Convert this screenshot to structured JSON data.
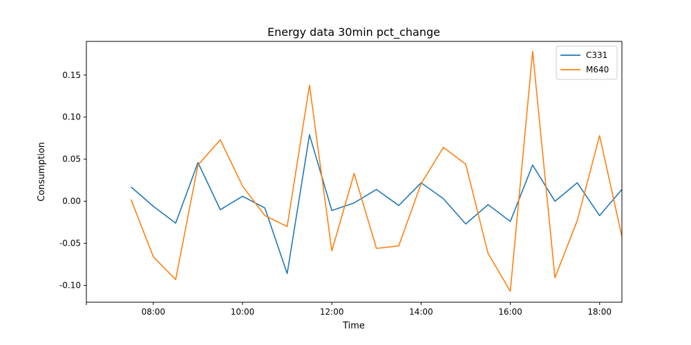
{
  "chart_data": {
    "type": "line",
    "title": "Energy data 30min pct_change",
    "xlabel": "Time",
    "ylabel": "Consumption",
    "x": [
      "07:30",
      "08:00",
      "08:30",
      "09:00",
      "09:30",
      "10:00",
      "10:30",
      "11:00",
      "11:30",
      "12:00",
      "12:30",
      "13:00",
      "13:30",
      "14:00",
      "14:30",
      "15:00",
      "15:30",
      "16:00",
      "16:30",
      "17:00",
      "17:30",
      "18:00",
      "18:30"
    ],
    "xlim": [
      "06:30",
      "18:30"
    ],
    "ylim": [
      -0.12,
      0.19
    ],
    "x_ticks": [
      "08:00",
      "10:00",
      "12:00",
      "14:00",
      "16:00",
      "18:00"
    ],
    "y_ticks": [
      "-0.10",
      "-0.05",
      "0.00",
      "0.05",
      "0.10",
      "0.15"
    ],
    "grid": false,
    "legend_position": "top-right",
    "series": [
      {
        "name": "C331",
        "color": "#1f77b4",
        "values": [
          0.017,
          -0.006,
          -0.026,
          0.046,
          -0.01,
          0.006,
          -0.008,
          -0.086,
          0.079,
          -0.011,
          -0.002,
          0.014,
          -0.005,
          0.022,
          0.003,
          -0.027,
          -0.004,
          -0.024,
          0.043,
          0.0,
          0.022,
          -0.017,
          0.014
        ]
      },
      {
        "name": "M640",
        "color": "#ff7f0e",
        "values": [
          0.002,
          -0.066,
          -0.093,
          0.043,
          0.073,
          0.018,
          -0.017,
          -0.03,
          0.138,
          -0.059,
          0.033,
          -0.056,
          -0.053,
          0.021,
          0.064,
          0.044,
          -0.062,
          -0.107,
          0.178,
          -0.091,
          -0.023,
          0.078,
          -0.042
        ]
      }
    ]
  }
}
